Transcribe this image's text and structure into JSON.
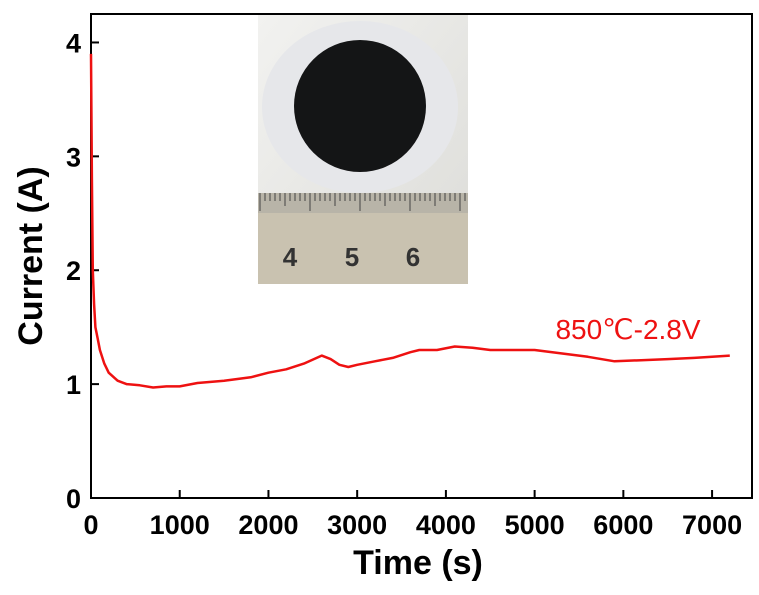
{
  "chart_data": {
    "type": "line",
    "x_label": "Time (s)",
    "y_label": "Current (A)",
    "annotation": "850℃-2.8V",
    "inset_labels": [
      "4",
      "5",
      "6"
    ],
    "xlim": [
      0,
      7450
    ],
    "ylim": [
      0,
      4.25
    ],
    "xticks": [
      0,
      1000,
      2000,
      3000,
      4000,
      5000,
      6000,
      7000
    ],
    "yticks": [
      0,
      1,
      2,
      3,
      4
    ],
    "series": [
      {
        "color": "#ee1111",
        "x": [
          0,
          10,
          20,
          35,
          50,
          75,
          100,
          150,
          200,
          300,
          400,
          550,
          700,
          850,
          1000,
          1200,
          1500,
          1800,
          2000,
          2200,
          2400,
          2600,
          2700,
          2800,
          2900,
          3000,
          3200,
          3400,
          3600,
          3700,
          3900,
          4100,
          4300,
          4500,
          4800,
          5000,
          5300,
          5600,
          5900,
          6200,
          6500,
          6800,
          7000,
          7200
        ],
        "values": [
          3.9,
          2.8,
          2.0,
          1.7,
          1.5,
          1.4,
          1.3,
          1.18,
          1.1,
          1.03,
          1.0,
          0.99,
          0.97,
          0.98,
          0.98,
          1.01,
          1.03,
          1.06,
          1.1,
          1.13,
          1.18,
          1.25,
          1.22,
          1.17,
          1.15,
          1.17,
          1.2,
          1.23,
          1.28,
          1.3,
          1.3,
          1.33,
          1.32,
          1.3,
          1.3,
          1.3,
          1.27,
          1.24,
          1.2,
          1.21,
          1.22,
          1.23,
          1.24,
          1.25
        ]
      }
    ]
  }
}
